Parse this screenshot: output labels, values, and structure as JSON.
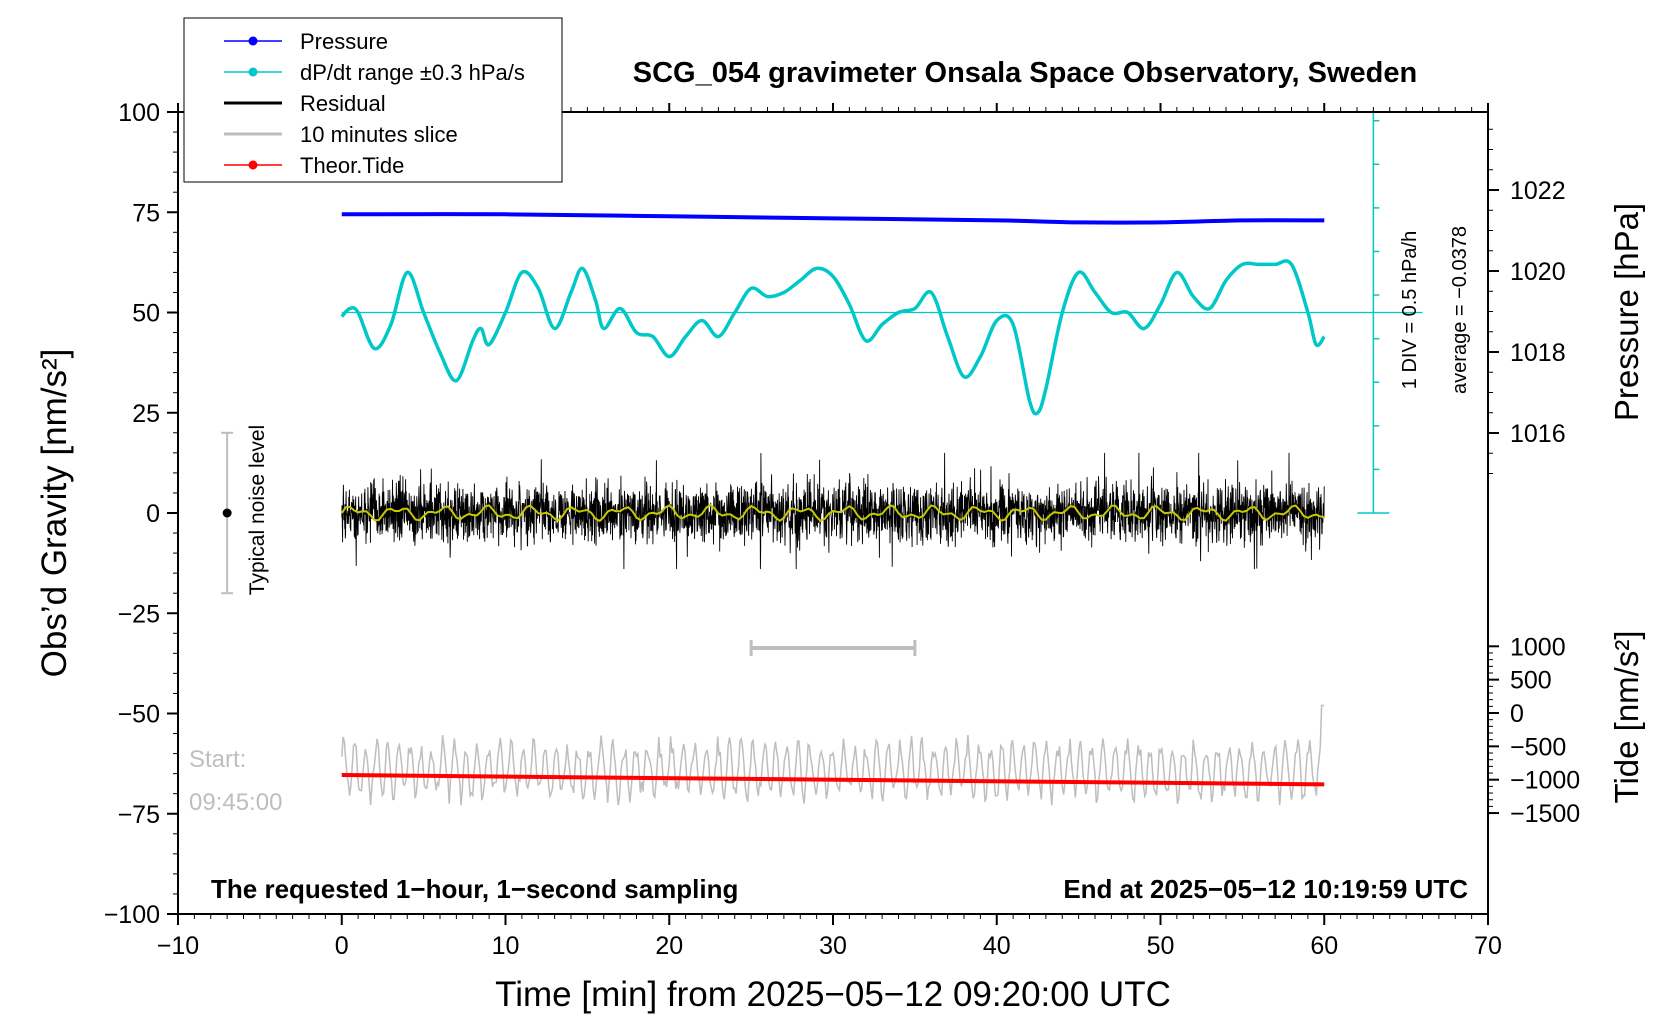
{
  "chart_data": {
    "type": "line",
    "title": "SCG_054 gravimeter Onsala Space Observatory, Sweden",
    "xlabel": "Time [min] from 2025−05−12 09:20:00 UTC",
    "xlim": [
      -10,
      70
    ],
    "xticks": [
      "−10",
      "0",
      "10",
      "20",
      "30",
      "40",
      "50",
      "60",
      "70"
    ],
    "ylabel_left": "Obs’d Gravity [nm/s²]",
    "ylim_left": [
      -100,
      100
    ],
    "yticks_left": [
      "100",
      "75",
      "50",
      "25",
      "0",
      "−25",
      "−50",
      "−75",
      "−100"
    ],
    "ylabel_pressure": "Pressure [hPa]",
    "yticks_pressure": [
      "1022",
      "1020",
      "1018",
      "1016"
    ],
    "ylabel_tide": "Tide [nm/s²]",
    "yticks_tide": [
      "1000",
      "500",
      "0",
      "−500",
      "−1000",
      "−1500"
    ],
    "legend": {
      "placement": "top-left",
      "entries": [
        {
          "label": "Pressure",
          "color": "#0000ff",
          "marker": true
        },
        {
          "label": "dP/dt range ±0.3 hPa/s",
          "color": "#00c8c8",
          "marker": true
        },
        {
          "label": "Residual",
          "color": "#000000",
          "marker": false
        },
        {
          "label": "10 minutes slice",
          "color": "#bebebe",
          "marker": false
        },
        {
          "label": "Theor.Tide",
          "color": "#ff0000",
          "marker": true
        }
      ]
    },
    "series": [
      {
        "name": "Pressure",
        "axis": "pressure_hPa",
        "color": "#0000ff",
        "x": [
          0,
          10,
          20,
          30,
          40,
          45,
          50,
          55,
          60
        ],
        "y": [
          1021.4,
          1021.4,
          1021.35,
          1021.3,
          1021.25,
          1021.2,
          1021.2,
          1021.25,
          1021.25
        ]
      },
      {
        "name": "dP/dt range ±0.3 hPa/s",
        "axis": "gravity_scale",
        "color": "#00c8c8",
        "x": [
          0,
          0.5,
          1,
          2,
          3,
          4,
          5,
          6,
          7,
          8,
          8.5,
          9,
          10,
          11,
          12,
          13,
          14,
          14.7,
          15.5,
          16,
          17,
          18,
          19,
          20,
          21,
          22,
          23,
          24,
          25,
          26,
          27,
          28,
          29,
          30,
          31,
          32,
          33,
          34,
          35,
          36,
          37,
          38,
          39,
          40,
          41,
          42,
          42.5,
          43,
          44,
          45,
          46,
          47,
          48,
          49,
          50,
          51,
          52,
          53,
          54,
          55,
          56,
          57,
          58,
          59,
          59.5,
          60
        ],
        "y": [
          49,
          51,
          50,
          41,
          47,
          60,
          50,
          40,
          33,
          43,
          46,
          42,
          50,
          60,
          56,
          46,
          55,
          61,
          53,
          46,
          51,
          45,
          44,
          39,
          44,
          48,
          44,
          50,
          56,
          54,
          55,
          58,
          61,
          59,
          52,
          43,
          47,
          50,
          51,
          55,
          44,
          34,
          39,
          48,
          47,
          28,
          25,
          31,
          50,
          60,
          55,
          50,
          50,
          46,
          52,
          60,
          54,
          51,
          58,
          62,
          62,
          62,
          62,
          50,
          42,
          44
        ]
      },
      {
        "name": "Residual",
        "axis": "gravity_nm_s2",
        "color": "#000000",
        "x": [
          0,
          60
        ],
        "y": [
          0,
          0
        ],
        "envelope": [
          -10,
          15
        ]
      },
      {
        "name": "10 minutes slice",
        "axis": "gravity_scale",
        "color": "#bebebe",
        "x": [
          0,
          60
        ],
        "y": [
          -64,
          -64
        ],
        "range": [
          -73,
          -48
        ],
        "bracket_x": [
          25,
          35
        ]
      },
      {
        "name": "Theor.Tide",
        "axis": "tide_nm_s2",
        "color": "#ff0000",
        "x": [
          0,
          60
        ],
        "y": [
          -930,
          -1070
        ]
      }
    ],
    "annotations": {
      "noise_label": "Typical noise level",
      "noise_range": [
        -20,
        20
      ],
      "noise_x": -7,
      "div_label": "1 DIV = 0.5 hPa/h",
      "average_label": "average = −0.0378",
      "start_label": "Start:",
      "start_time": "09:45:00",
      "footer_left": "The requested 1−hour, 1−second sampling",
      "footer_right": "End at 2025−05−12 10:19:59 UTC"
    },
    "grid": false
  }
}
